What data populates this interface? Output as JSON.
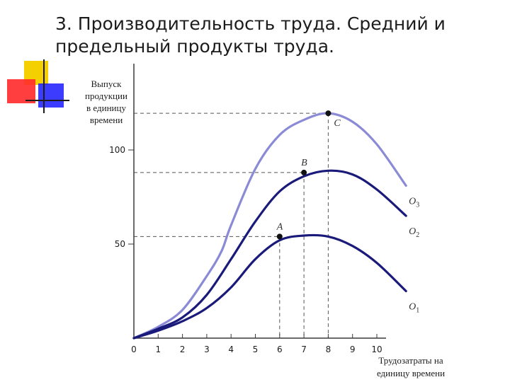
{
  "slide": {
    "title_line1": "3. Производительность труда. Средний и",
    "title_line2": "предельный продукты труда."
  },
  "colors": {
    "dark_curve": "#1a1a7a",
    "light_curve": "#8a8ad6",
    "deco_yellow": "#f5d000",
    "deco_red": "#ff2a2a",
    "deco_blue": "#1a1aff"
  },
  "chart_data": {
    "type": "line",
    "ylabel_lines": [
      "Выпуск",
      "продукции",
      "в единицу",
      "времени"
    ],
    "xlabel_lines": [
      "Трудозатраты на",
      "единицу времени"
    ],
    "xlim": [
      0,
      11.5
    ],
    "ylim": [
      0,
      125
    ],
    "x_ticks": [
      "0",
      "1",
      "2",
      "3",
      "4",
      "5",
      "6",
      "7",
      "8",
      "9",
      "10"
    ],
    "y_ticks": [
      "50",
      "100"
    ],
    "y_tick_values": [
      50,
      100
    ],
    "grid": false,
    "series": [
      {
        "name": "O3",
        "label_main": "O",
        "label_sub": "3",
        "color": "#8a8ad6",
        "x": [
          0,
          1,
          2,
          3,
          3.6,
          4,
          5,
          6,
          7,
          8,
          9,
          10,
          11.2
        ],
        "y": [
          0,
          6,
          15,
          33,
          46,
          60,
          90,
          108,
          116,
          119.5,
          115,
          103,
          81
        ]
      },
      {
        "name": "O2",
        "label_main": "O",
        "label_sub": "2",
        "color": "#1a1a7a",
        "x": [
          0,
          1,
          2,
          3,
          4,
          5,
          6,
          7,
          8,
          9,
          10,
          11.2
        ],
        "y": [
          0,
          5,
          11,
          23,
          42,
          62,
          78,
          86,
          89,
          87,
          79,
          65
        ]
      },
      {
        "name": "O1",
        "label_main": "O",
        "label_sub": "1",
        "color": "#1a1a7a",
        "x": [
          0,
          1,
          2,
          3,
          4,
          5,
          6,
          7,
          8,
          9,
          10,
          11.2
        ],
        "y": [
          0,
          4,
          9,
          16,
          27,
          42,
          52,
          54.5,
          54,
          49,
          40,
          25
        ]
      }
    ],
    "points": [
      {
        "label": "A",
        "x": 6,
        "y": 54
      },
      {
        "label": "B",
        "x": 7,
        "y": 88
      },
      {
        "label": "C",
        "x": 8,
        "y": 119.5
      }
    ]
  }
}
